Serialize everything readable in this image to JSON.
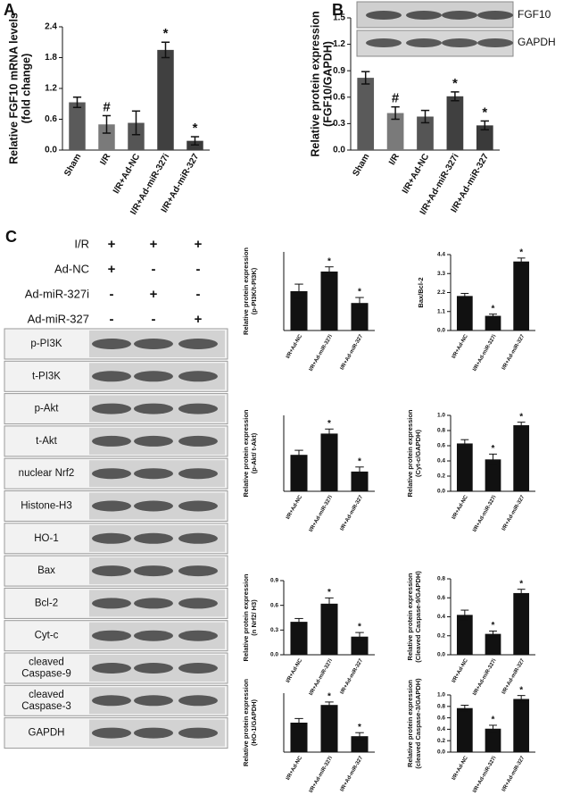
{
  "chart_data": [
    {
      "type": "bar",
      "panel": "A",
      "ylabel": [
        "Relative FGF10 mRNA levels",
        "(fold change)"
      ],
      "categories": [
        "Sham",
        "I/R",
        "I/R+Ad-NC",
        "I/R+Ad-miR-327i",
        "I/R+Ad-miR-327"
      ],
      "values": [
        0.93,
        0.5,
        0.53,
        1.95,
        0.18
      ],
      "errors": [
        0.1,
        0.17,
        0.23,
        0.15,
        0.08
      ],
      "annotations": [
        null,
        "#",
        null,
        "*",
        "*"
      ],
      "colors": [
        "#5a5a5a",
        "#7a7a7a",
        "#555555",
        "#404040",
        "#3a3a3a"
      ],
      "ylim": [
        0,
        2.4
      ],
      "yticks": [
        {
          "value": 0,
          "label": "0.0"
        },
        0.6,
        1.2,
        1.8,
        2.4
      ]
    },
    {
      "type": "bar",
      "panel": "B",
      "ylabel": [
        "Relative protein expression",
        "(FGF10/GAPDH)"
      ],
      "categories": [
        "Sham",
        "I/R",
        "I/R+Ad-NC",
        "I/R+Ad-miR-327i",
        "I/R+Ad-miR-327"
      ],
      "values": [
        0.82,
        0.42,
        0.38,
        0.61,
        0.28
      ],
      "errors": [
        0.07,
        0.07,
        0.07,
        0.05,
        0.05
      ],
      "annotations": [
        null,
        "#",
        null,
        "*",
        "*"
      ],
      "colors": [
        "#5a5a5a",
        "#7a7a7a",
        "#555555",
        "#404040",
        "#3a3a3a"
      ],
      "ylim": [
        0,
        1.5
      ],
      "yticks": [
        {
          "value": 0,
          "label": "0.0"
        },
        0.3,
        0.6,
        0.9,
        1.2,
        1.5
      ]
    },
    {
      "type": "bar",
      "ylabel": [
        "Relative protein expression",
        "(p-PI3K/t-PI3K)"
      ],
      "categories": [
        "I/R+Ad-NC",
        "I/R+Ad-miR-327i",
        "I/R+Ad-miR-327"
      ],
      "values": [
        0.5,
        0.75,
        0.35
      ],
      "errors": [
        0.09,
        0.06,
        0.07
      ],
      "annotations": [
        null,
        "*",
        "*"
      ],
      "colors": [
        "#111111",
        "#111111",
        "#111111"
      ],
      "ylim": [
        0,
        1
      ]
    },
    {
      "type": "bar",
      "ylabel": [
        "Bax/Bcl-2"
      ],
      "categories": [
        "I/R+Ad-NC",
        "I/R+Ad-miR-327i",
        "I/R+Ad-miR-327"
      ],
      "values": [
        2.0,
        0.85,
        4.0
      ],
      "errors": [
        0.15,
        0.1,
        0.2
      ],
      "annotations": [
        null,
        "*",
        "*"
      ],
      "colors": [
        "#111111",
        "#111111",
        "#111111"
      ],
      "ylim": [
        0,
        4.4
      ],
      "yticks": [
        {
          "value": 0,
          "label": "0.0"
        },
        1.1,
        2.2,
        3.3,
        4.4
      ]
    },
    {
      "type": "bar",
      "ylabel": [
        "Relative protein expression",
        "(p-Akt/ t-Akt)"
      ],
      "categories": [
        "I/R+Ad-NC",
        "I/R+Ad-miR-327i",
        "I/R+Ad-miR-327"
      ],
      "values": [
        0.24,
        0.38,
        0.13
      ],
      "errors": [
        0.03,
        0.03,
        0.03
      ],
      "annotations": [
        null,
        "*",
        "*"
      ],
      "colors": [
        "#111111",
        "#111111",
        "#111111"
      ],
      "ylim": [
        0,
        0.5
      ]
    },
    {
      "type": "bar",
      "ylabel": [
        "Relative protein expression",
        "(Cyt-c/GAPDH)"
      ],
      "categories": [
        "I/R+Ad-NC",
        "I/R+Ad-miR-327i",
        "I/R+Ad-miR-327"
      ],
      "values": [
        0.63,
        0.42,
        0.87
      ],
      "errors": [
        0.05,
        0.07,
        0.04
      ],
      "annotations": [
        null,
        "*",
        "*"
      ],
      "colors": [
        "#111111",
        "#111111",
        "#111111"
      ],
      "ylim": [
        0,
        1
      ],
      "yticks": [
        {
          "value": 0,
          "label": "0.0"
        },
        0.2,
        0.4,
        0.6,
        0.8,
        {
          "value": 1,
          "label": "1.0"
        }
      ]
    },
    {
      "type": "bar",
      "ylabel": [
        "Relative protein expression",
        "(n Nrf2/ H3)"
      ],
      "categories": [
        "I/R+Ad-NC",
        "I/R+Ad-miR-327i",
        "I/R+Ad-miR-327"
      ],
      "values": [
        0.4,
        0.62,
        0.22
      ],
      "errors": [
        0.04,
        0.07,
        0.05
      ],
      "annotations": [
        null,
        "*",
        "*"
      ],
      "colors": [
        "#111111",
        "#111111",
        "#111111"
      ],
      "ylim": [
        0,
        0.9
      ],
      "yticks": [
        {
          "value": 0,
          "label": "0.0"
        },
        0.3,
        0.6,
        0.9
      ]
    },
    {
      "type": "bar",
      "ylabel": [
        "Relative protein expression",
        "(Cleaved Caspase-9/GAPDH)"
      ],
      "categories": [
        "I/R+Ad-NC",
        "I/R+Ad-miR-327i",
        "I/R+Ad-miR-327"
      ],
      "values": [
        0.42,
        0.22,
        0.65
      ],
      "errors": [
        0.05,
        0.03,
        0.04
      ],
      "annotations": [
        null,
        "*",
        "*"
      ],
      "colors": [
        "#111111",
        "#111111",
        "#111111"
      ],
      "ylim": [
        0,
        0.8
      ],
      "yticks": [
        {
          "value": 0,
          "label": "0.0"
        },
        0.2,
        0.4,
        0.6,
        0.8
      ]
    },
    {
      "type": "bar",
      "ylabel": [
        "Relative protein expression",
        "(HO-1/GAPDH)"
      ],
      "categories": [
        "I/R+Ad-NC",
        "I/R+Ad-miR-327i",
        "I/R+Ad-miR-327"
      ],
      "values": [
        0.5,
        0.8,
        0.27
      ],
      "errors": [
        0.07,
        0.05,
        0.06
      ],
      "annotations": [
        null,
        "*",
        "*"
      ],
      "colors": [
        "#111111",
        "#111111",
        "#111111"
      ],
      "ylim": [
        0,
        1
      ]
    },
    {
      "type": "bar",
      "ylabel": [
        "Relative protein expression",
        "(cleaved Caspase-3/GAPDH)"
      ],
      "categories": [
        "I/R+Ad-NC",
        "I/R+Ad-miR-327i",
        "I/R+Ad-miR-327"
      ],
      "values": [
        0.77,
        0.41,
        0.93
      ],
      "errors": [
        0.05,
        0.06,
        0.06
      ],
      "annotations": [
        null,
        "*",
        "*"
      ],
      "colors": [
        "#111111",
        "#111111",
        "#111111"
      ],
      "ylim": [
        0,
        1
      ],
      "yticks": [
        {
          "value": 0,
          "label": "0.0"
        },
        0.2,
        0.4,
        0.6,
        0.8,
        {
          "value": 1,
          "label": "1.0"
        }
      ]
    }
  ],
  "blot_b": {
    "labels": [
      "FGF10",
      "GAPDH"
    ]
  },
  "blot_c": {
    "panel": "C",
    "treatments": [
      {
        "label": "I/R",
        "marks": [
          "+",
          "+",
          "+"
        ]
      },
      {
        "label": "Ad-NC",
        "marks": [
          "+",
          "-",
          "-"
        ]
      },
      {
        "label": "Ad-miR-327i",
        "marks": [
          "-",
          "+",
          "-"
        ]
      },
      {
        "label": "Ad-miR-327",
        "marks": [
          "-",
          "-",
          "+"
        ]
      }
    ],
    "bands": [
      [
        "p-PI3K"
      ],
      [
        "t-PI3K"
      ],
      [
        "p-Akt"
      ],
      [
        "t-Akt"
      ],
      [
        "nuclear Nrf2"
      ],
      [
        "Histone-H3"
      ],
      [
        "HO-1"
      ],
      [
        "Bax"
      ],
      [
        "Bcl-2"
      ],
      [
        "Cyt-c"
      ],
      [
        "cleaved",
        "Caspase-9"
      ],
      [
        "cleaved",
        "Caspase-3"
      ],
      [
        "GAPDH"
      ]
    ]
  }
}
